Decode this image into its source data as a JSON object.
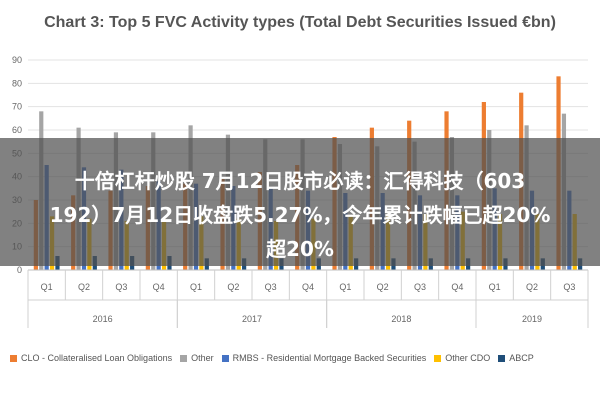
{
  "chart_data": {
    "type": "bar",
    "title": "Chart 3: Top 5 FVC Activity types (Total Debt Securities Issued €bn)",
    "xlabel": "",
    "ylabel": "",
    "ylim": [
      0,
      90
    ],
    "y_ticks": [
      0,
      10,
      20,
      30,
      40,
      50,
      60,
      70,
      80,
      90
    ],
    "categories": [
      "Q1",
      "Q2",
      "Q3",
      "Q4",
      "Q1",
      "Q2",
      "Q3",
      "Q4",
      "Q1",
      "Q2",
      "Q3",
      "Q4",
      "Q1",
      "Q2",
      "Q3"
    ],
    "years": [
      {
        "label": "2016",
        "start": 0,
        "end": 3
      },
      {
        "label": "2017",
        "start": 4,
        "end": 7
      },
      {
        "label": "2018",
        "start": 8,
        "end": 11
      },
      {
        "label": "2019",
        "start": 12,
        "end": 14
      }
    ],
    "grid": true,
    "legend_position": "bottom",
    "series": [
      {
        "name": "CLO - Collateralised Loan Obligations",
        "color": "#ED7D31",
        "values": [
          30,
          32,
          34,
          36,
          37,
          39,
          42,
          45,
          57,
          61,
          64,
          68,
          72,
          76,
          83
        ]
      },
      {
        "name": "Other",
        "color": "#A5A5A5",
        "values": [
          68,
          61,
          59,
          59,
          62,
          58,
          56,
          56,
          54,
          53,
          55,
          57,
          60,
          62,
          67
        ]
      },
      {
        "name": "RMBS - Residential Mortgage Backed Securities",
        "color": "#4472C4",
        "values": [
          45,
          44,
          43,
          38,
          37,
          36,
          35,
          34,
          33,
          33,
          32,
          32,
          35,
          34,
          34
        ]
      },
      {
        "name": "Other CDO",
        "color": "#FFC000",
        "values": [
          23,
          22,
          21,
          22,
          23,
          22,
          21,
          22,
          23,
          24,
          24,
          25,
          24,
          24,
          24
        ]
      },
      {
        "name": "ABCP",
        "color": "#1F4E79",
        "values": [
          6,
          6,
          6,
          6,
          5,
          5,
          5,
          5,
          5,
          5,
          5,
          5,
          5,
          5,
          5
        ]
      }
    ]
  },
  "overlay": {
    "line1": "十倍杠杆炒股 7月12日股市必读：汇得科技（603",
    "line2": "192）7月12日收盘跌5.27%，今年累计跌幅已超20%",
    "line3": "超20%"
  }
}
